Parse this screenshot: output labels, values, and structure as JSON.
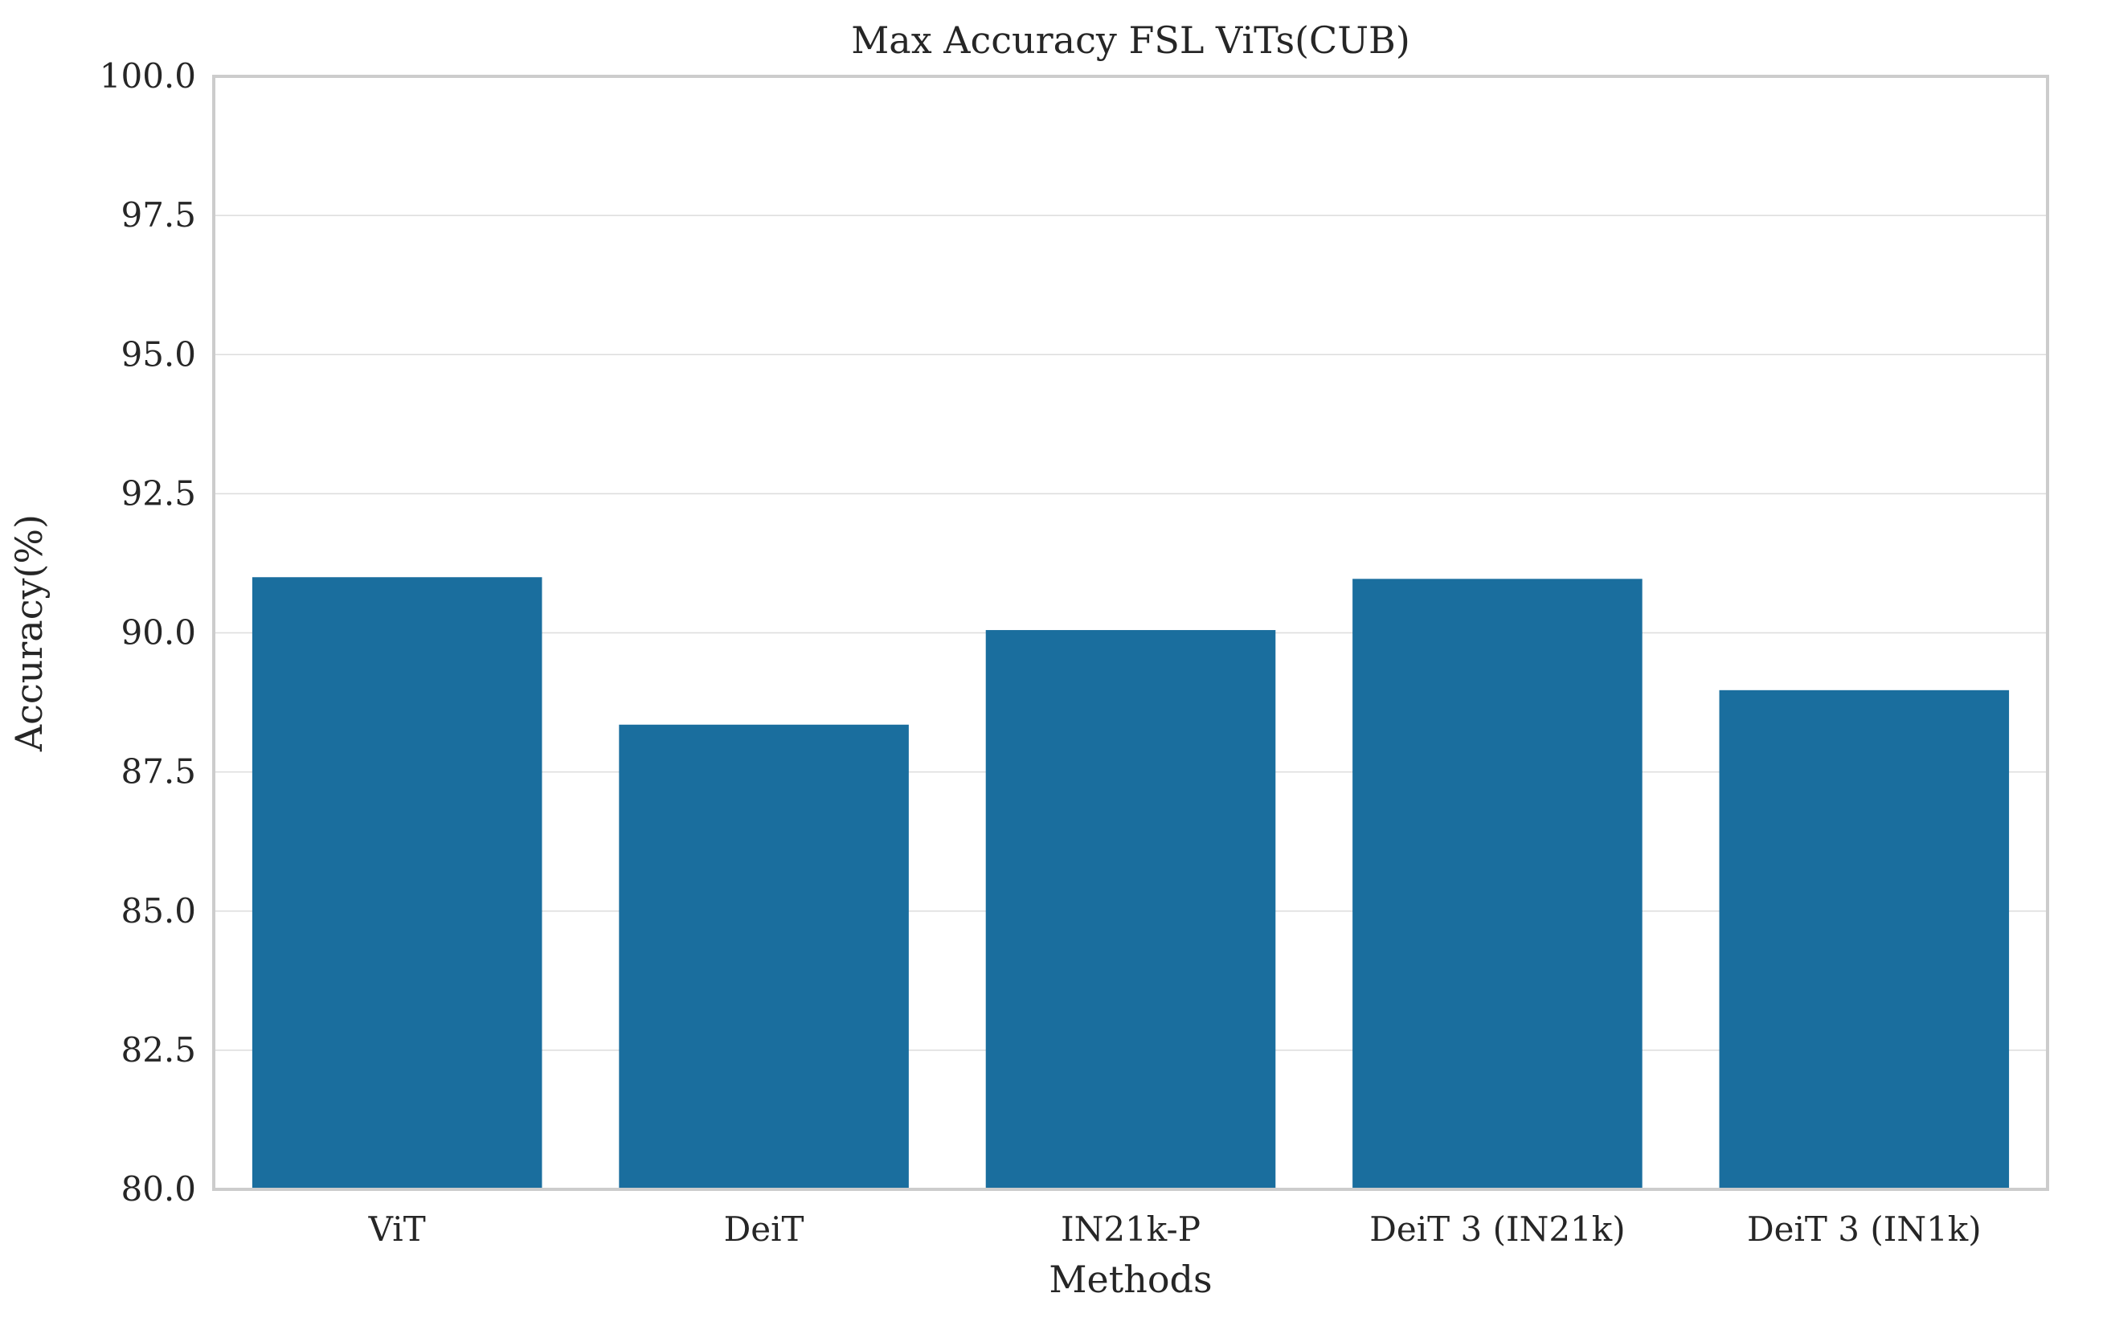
{
  "chart_data": {
    "type": "bar",
    "title": "Max Accuracy FSL ViTs(CUB)",
    "xlabel": "Methods",
    "ylabel": "Accuracy(%)",
    "categories": [
      "ViT",
      "DeiT",
      "IN21k-P",
      "DeiT 3 (IN21k)",
      "DeiT 3 (IN1k)"
    ],
    "values": [
      91.0,
      88.35,
      90.05,
      90.97,
      88.97
    ],
    "ylim": [
      80.0,
      100.0
    ],
    "yticks": [
      "80.0",
      "82.5",
      "85.0",
      "87.5",
      "90.0",
      "92.5",
      "95.0",
      "97.5",
      "100.0"
    ],
    "grid": "horizontal",
    "bar_color": "#1a6e9e"
  }
}
